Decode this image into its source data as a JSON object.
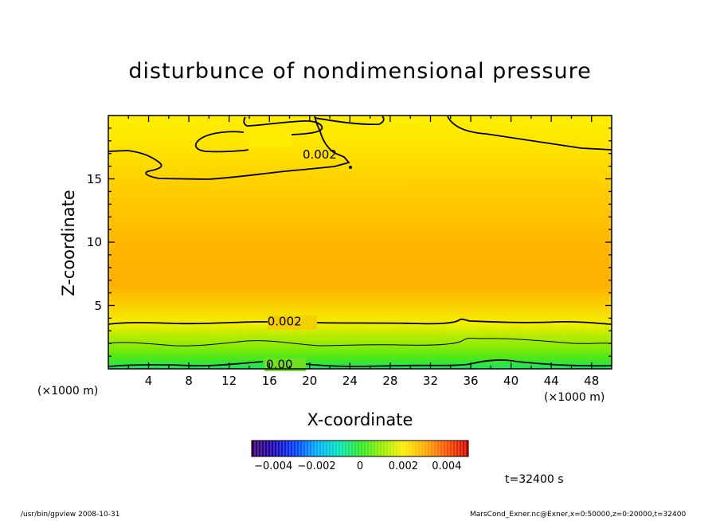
{
  "title": "disturbunce of nondimensional pressure",
  "time_label": "t=32400 s",
  "footer": {
    "left": "/usr/bin/gpview   2008-10-31",
    "right": "MarsCond_Exner.nc@Exner,x=0:50000,z=0:20000,t=32400"
  },
  "chart_data": {
    "type": "heatmap",
    "title": "disturbunce of nondimensional pressure",
    "xlabel": "X-coordinate",
    "ylabel": "Z-coordinate",
    "x_unit_label": "(×1000 m)",
    "xlim": [
      0,
      50
    ],
    "ylim": [
      0,
      20
    ],
    "x_ticks": [
      4,
      8,
      12,
      16,
      20,
      24,
      28,
      32,
      36,
      40,
      44,
      48
    ],
    "y_ticks": [
      5,
      10,
      15
    ],
    "z_profile": [
      {
        "z": 0,
        "value": -0.0004
      },
      {
        "z": 0.8,
        "value": 0.0003
      },
      {
        "z": 1.6,
        "value": 0.0008
      },
      {
        "z": 2.6,
        "value": 0.0013
      },
      {
        "z": 3.6,
        "value": 0.0019
      },
      {
        "z": 6.5,
        "value": 0.0029
      },
      {
        "z": 10,
        "value": 0.0028
      },
      {
        "z": 14,
        "value": 0.0025
      },
      {
        "z": 18,
        "value": 0.0021
      },
      {
        "z": 20,
        "value": 0.002
      }
    ],
    "contour_labels": [
      {
        "text": "0.002",
        "x": 21.0,
        "z": 16.9
      },
      {
        "text": "0.002",
        "x": 17.5,
        "z": 3.7
      },
      {
        "text": "0.00",
        "x": 17.0,
        "z": 0.3
      }
    ],
    "colorbar": {
      "range": [
        -0.005,
        0.005
      ],
      "tick_labels": [
        "-0.004",
        "-0.002",
        "0",
        "0.002",
        "0.004"
      ],
      "tick_values": [
        -0.004,
        -0.002,
        0,
        0.002,
        0.004
      ]
    }
  }
}
